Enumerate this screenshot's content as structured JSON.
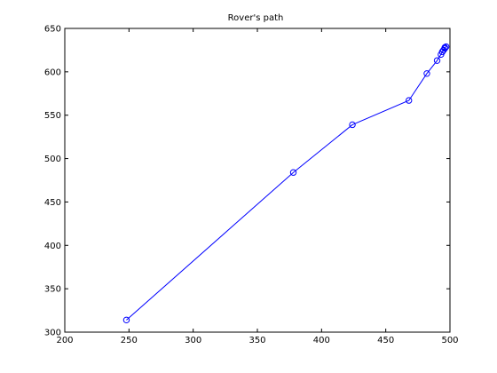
{
  "chart_data": {
    "type": "line",
    "title": "Rover's path",
    "xlabel": "",
    "ylabel": "",
    "xlim": [
      200,
      500
    ],
    "ylim": [
      300,
      650
    ],
    "xticks": [
      200,
      250,
      300,
      350,
      400,
      450,
      500
    ],
    "yticks": [
      300,
      350,
      400,
      450,
      500,
      550,
      600,
      650
    ],
    "grid": false,
    "color": "#0000ff",
    "marker": "circle",
    "series": [
      {
        "x": [
          248,
          378,
          424,
          468,
          482,
          490,
          493,
          494,
          495,
          496,
          496,
          497
        ],
        "y": [
          314,
          484,
          539,
          567,
          598,
          613,
          620,
          623,
          625,
          627,
          628,
          629
        ]
      }
    ]
  }
}
